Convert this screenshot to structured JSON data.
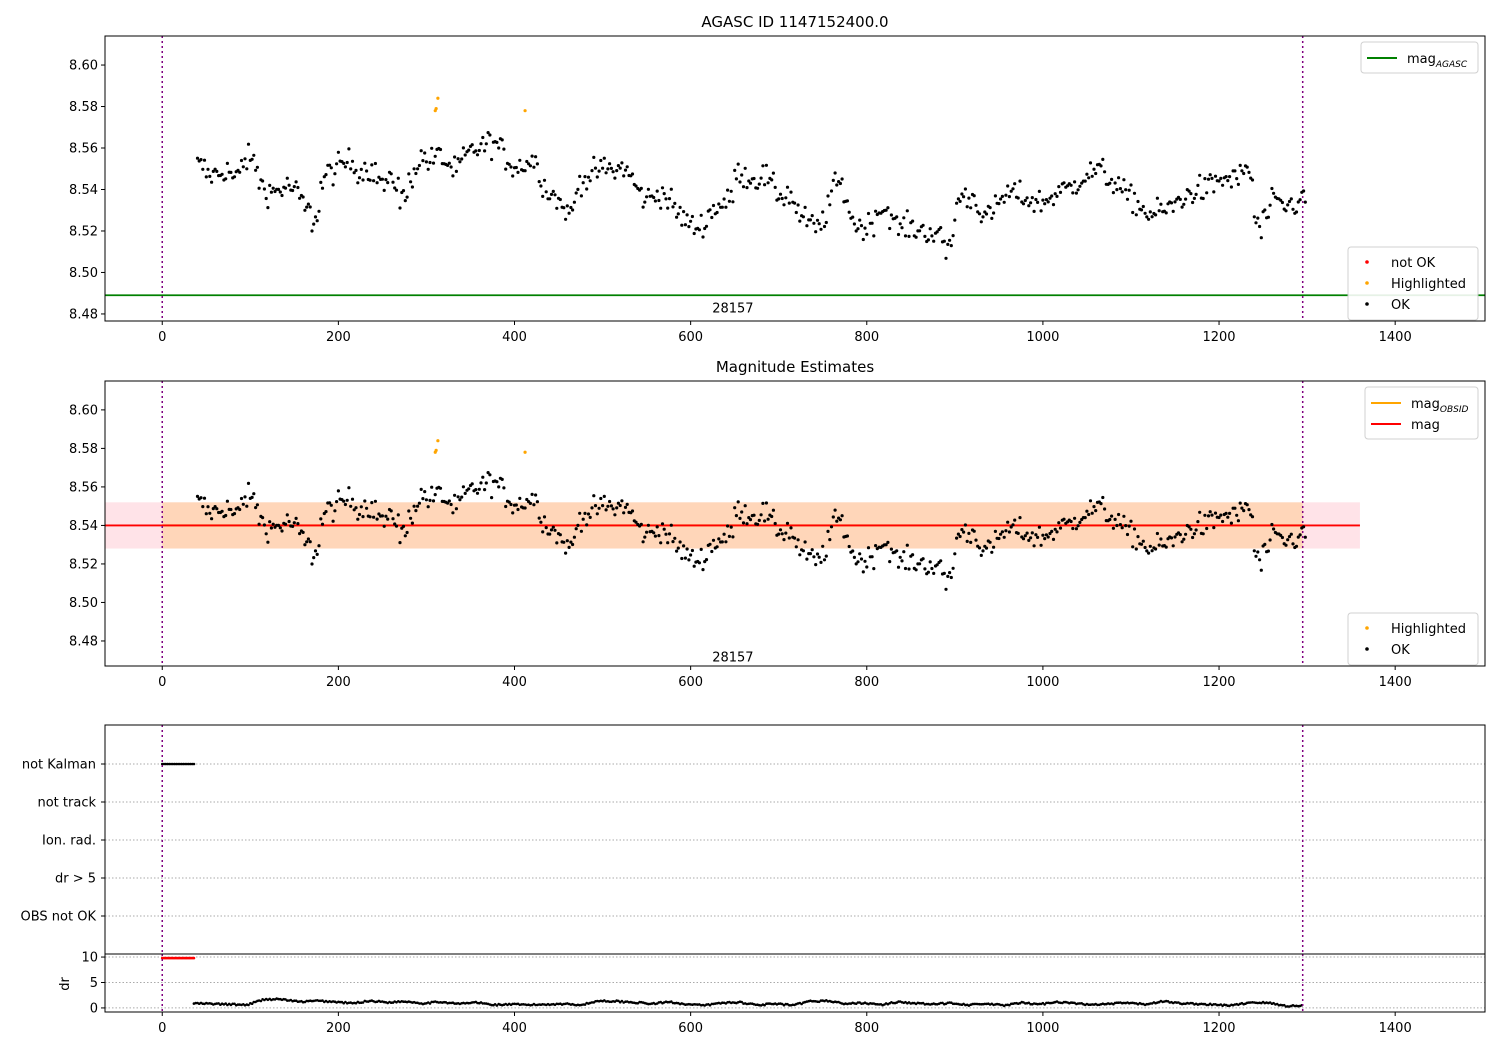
{
  "chart_data": [
    {
      "type": "scatter",
      "title": "AGASC ID 1147152400.0",
      "xlim": [
        -65,
        1502
      ],
      "ylim": [
        8.4766,
        8.614
      ],
      "xticks": [
        0,
        200,
        400,
        600,
        800,
        1000,
        1200,
        1400
      ],
      "yticks": [
        8.48,
        8.5,
        8.52,
        8.54,
        8.56,
        8.58,
        8.6
      ],
      "ytick_labels": [
        "8.48",
        "8.50",
        "8.52",
        "8.54",
        "8.56",
        "8.58",
        "8.60"
      ],
      "mag_agasc": 8.489,
      "obsid_bounds": [
        0,
        1295
      ],
      "annotation": {
        "text": "28157",
        "x": 648,
        "y": 8.483
      },
      "legend_upper": [
        {
          "label": "mag",
          "sub": "AGASC",
          "color": "#008000"
        }
      ],
      "legend_lower": [
        {
          "label": "not OK",
          "color": "#ff0000"
        },
        {
          "label": "Highlighted",
          "color": "#ffa500"
        },
        {
          "label": "OK",
          "color": "#000000"
        }
      ]
    },
    {
      "type": "scatter",
      "title": "Magnitude Estimates",
      "xlim": [
        -65,
        1502
      ],
      "ylim": [
        8.467,
        8.615
      ],
      "yticks": [
        8.48,
        8.5,
        8.52,
        8.54,
        8.56,
        8.58,
        8.6
      ],
      "ytick_labels": [
        "8.48",
        "8.50",
        "8.52",
        "8.54",
        "8.56",
        "8.58",
        "8.60"
      ],
      "mag": 8.54,
      "mag_obsid": 8.54,
      "band": [
        8.528,
        8.552
      ],
      "band_x_full": [
        -65,
        1360
      ],
      "annotation": {
        "text": "28157",
        "x": 648,
        "y": 8.472
      },
      "legend_upper": [
        {
          "label": "mag",
          "sub": "OBSID",
          "color": "#ffa500"
        },
        {
          "label": "mag",
          "sub": "",
          "color": "#ff0000"
        }
      ],
      "legend_lower": [
        {
          "label": "Highlighted",
          "color": "#ffa500"
        },
        {
          "label": "OK",
          "color": "#000000"
        }
      ]
    },
    {
      "type": "scatter",
      "title": "",
      "categories": [
        "not Kalman",
        "not track",
        "Ion. rad.",
        "dr > 5",
        "OBS not OK"
      ],
      "flags": {
        "not Kalman": [
          0,
          36
        ]
      },
      "dr": {
        "ylabel": "dr",
        "ylim": [
          -0.8,
          10.6
        ],
        "yticks": [
          0,
          5,
          10
        ],
        "ytick_labels": [
          "0",
          "5",
          "10"
        ],
        "red_points": {
          "x": [
            0,
            36
          ],
          "value": 9.8
        },
        "x_start": 36,
        "x_step": 20,
        "values": [
          0.9,
          0.8,
          0.7,
          0.6,
          1.7,
          1.7,
          1.2,
          1.4,
          1.2,
          0.9,
          1.4,
          1.1,
          1.3,
          0.9,
          1.2,
          0.8,
          1.1,
          0.6,
          0.7,
          0.6,
          0.7,
          0.8,
          0.6,
          1.4,
          1.3,
          1.1,
          0.8,
          1.2,
          0.7,
          0.5,
          1.0,
          1.1,
          0.6,
          0.8,
          0.5,
          1.3,
          1.4,
          0.8,
          1.0,
          0.6,
          1.2,
          0.9,
          0.7,
          1.0,
          0.6,
          0.8,
          0.5,
          1.0,
          0.7,
          1.2,
          0.9,
          0.6,
          0.8,
          1.0,
          0.7,
          1.3,
          0.9,
          0.8,
          0.6,
          0.5,
          1.1,
          1.0,
          0.4
        ]
      },
      "xticks": [
        0,
        200,
        400,
        600,
        800,
        1000,
        1200,
        1400
      ]
    }
  ],
  "series": {
    "x_start": 40,
    "x_step": 10,
    "points_per_step": 5,
    "noise": 0.006,
    "trend": [
      8.551,
      8.547,
      8.548,
      8.549,
      8.546,
      8.554,
      8.552,
      8.541,
      8.539,
      8.54,
      8.541,
      8.537,
      8.53,
      8.528,
      8.546,
      8.549,
      8.552,
      8.553,
      8.549,
      8.55,
      8.546,
      8.542,
      8.544,
      8.536,
      8.548,
      8.555,
      8.554,
      8.556,
      8.552,
      8.55,
      8.556,
      8.559,
      8.561,
      8.562,
      8.559,
      8.553,
      8.551,
      8.553,
      8.552,
      8.541,
      8.537,
      8.532,
      8.53,
      8.544,
      8.546,
      8.549,
      8.55,
      8.549,
      8.55,
      8.544,
      8.537,
      8.536,
      8.538,
      8.535,
      8.529,
      8.525,
      8.522,
      8.524,
      8.53,
      8.533,
      8.536,
      8.548,
      8.546,
      8.545,
      8.546,
      8.54,
      8.537,
      8.536,
      8.527,
      8.524,
      8.522,
      8.53,
      8.542,
      8.538,
      8.525,
      8.522,
      8.524,
      8.53,
      8.529,
      8.522,
      8.522,
      8.521,
      8.52,
      8.519,
      8.516,
      8.514,
      8.535,
      8.536,
      8.534,
      8.527,
      8.53,
      8.536,
      8.538,
      8.537,
      8.535,
      8.534,
      8.535,
      8.538,
      8.54,
      8.542,
      8.546,
      8.548,
      8.549,
      8.545,
      8.542,
      8.537,
      8.534,
      8.53,
      8.528,
      8.53,
      8.531,
      8.535,
      8.537,
      8.54,
      8.54,
      8.543,
      8.545,
      8.545,
      8.546,
      8.547,
      8.522,
      8.528,
      8.534,
      8.532,
      8.533,
      8.535
    ],
    "highlighted": [
      [
        310,
        8.578
      ],
      [
        311,
        8.579
      ],
      [
        313,
        8.584
      ],
      [
        412,
        8.578
      ]
    ]
  }
}
